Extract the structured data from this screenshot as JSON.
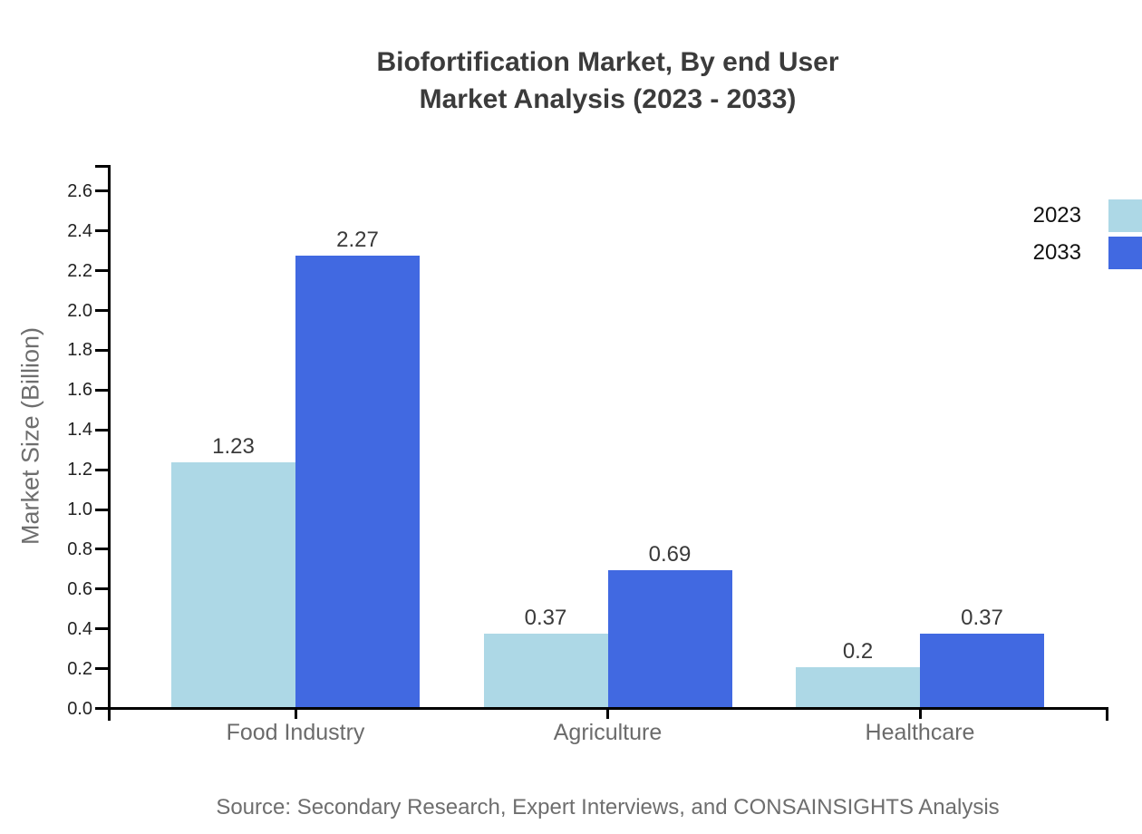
{
  "title": {
    "line1": "Biofortification Market, By end User",
    "line2": "Market Analysis (2023 - 2033)"
  },
  "source_note": "Source: Secondary Research, Expert Interviews, and CONSAINSIGHTS Analysis",
  "chart_data": {
    "type": "bar",
    "title": "Biofortification Market, By end User Market Analysis (2023 - 2033)",
    "categories": [
      "Food Industry",
      "Agriculture",
      "Healthcare"
    ],
    "series": [
      {
        "name": "2023",
        "color": "#ADD8E6",
        "values": [
          1.23,
          0.37,
          0.2
        ],
        "labels": [
          "1.23",
          "0.37",
          "0.2"
        ]
      },
      {
        "name": "2033",
        "color": "#4169E1",
        "values": [
          2.27,
          0.69,
          0.37
        ],
        "labels": [
          "2.27",
          "0.69",
          "0.37"
        ]
      }
    ],
    "xlabel": "",
    "ylabel": "Market Size (Billion)",
    "ylim": [
      0,
      2.73
    ],
    "yticks": [
      0.0,
      0.2,
      0.4,
      0.6,
      0.8,
      1.0,
      1.2,
      1.4,
      1.6,
      1.8,
      2.0,
      2.2,
      2.4,
      2.6
    ],
    "grid": false,
    "legend_position": "outside upper-right, swatches flush with right edge",
    "value_labels_shown": true
  }
}
